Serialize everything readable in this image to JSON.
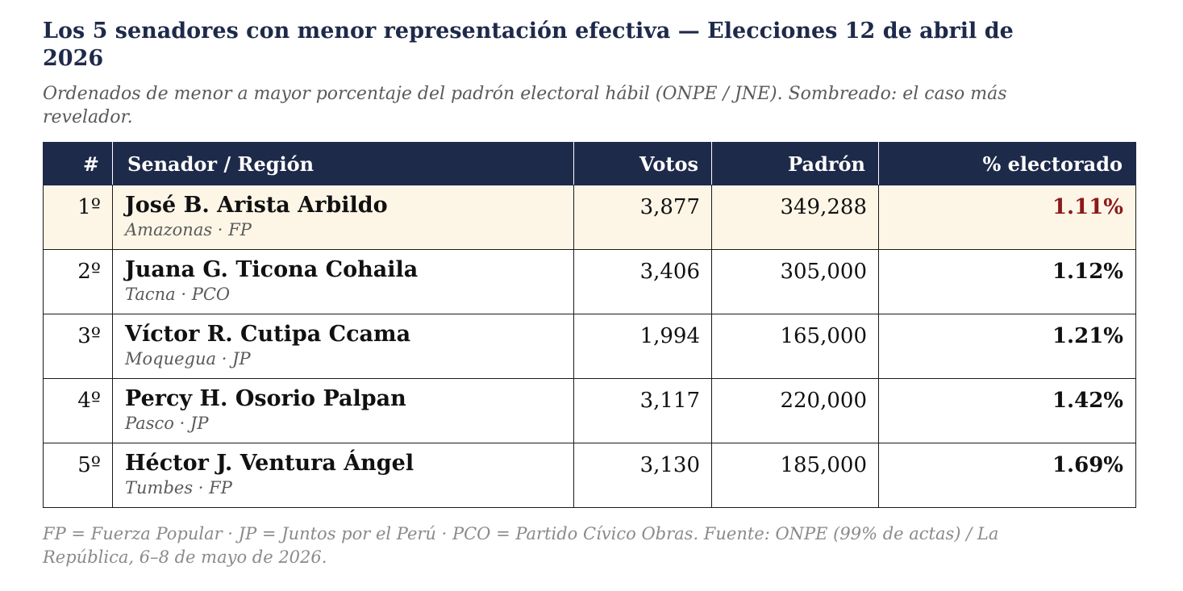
{
  "title": "Los 5 senadores con menor representación efectiva — Elecciones 12 de abril de 2026",
  "subtitle": "Ordenados de menor a mayor porcentaje del padrón electoral hábil (ONPE / JNE). Sombreado: el caso más revelador.",
  "table": {
    "headers": {
      "rank": "#",
      "name": "Senador / Región",
      "votos": "Votos",
      "padron": "Padrón",
      "pct": "% electorado"
    },
    "rows": [
      {
        "rank": "1º",
        "name": "José B. Arista Arbildo",
        "sub": "Amazonas · FP",
        "votos": "3,877",
        "padron": "349,288",
        "pct": "1.11%",
        "highlighted": true
      },
      {
        "rank": "2º",
        "name": "Juana G. Ticona Cohaila",
        "sub": "Tacna · PCO",
        "votos": "3,406",
        "padron": "305,000",
        "pct": "1.12%",
        "highlighted": false
      },
      {
        "rank": "3º",
        "name": "Víctor R. Cutipa Ccama",
        "sub": "Moquegua · JP",
        "votos": "1,994",
        "padron": "165,000",
        "pct": "1.21%",
        "highlighted": false
      },
      {
        "rank": "4º",
        "name": "Percy H. Osorio Palpan",
        "sub": "Pasco · JP",
        "votos": "3,117",
        "padron": "220,000",
        "pct": "1.42%",
        "highlighted": false
      },
      {
        "rank": "5º",
        "name": "Héctor J. Ventura Ángel",
        "sub": "Tumbes · FP",
        "votos": "3,130",
        "padron": "185,000",
        "pct": "1.69%",
        "highlighted": false
      }
    ]
  },
  "footnote": "FP = Fuerza Popular · JP = Juntos por el Perú · PCO = Partido Cívico Obras. Fuente: ONPE (99% de actas) / La República, 6–8 de mayo de 2026.",
  "colors": {
    "header_bg": "#1e2a4a",
    "highlight_bg": "#fdf6e7",
    "highlight_pct": "#8b1a1a"
  }
}
